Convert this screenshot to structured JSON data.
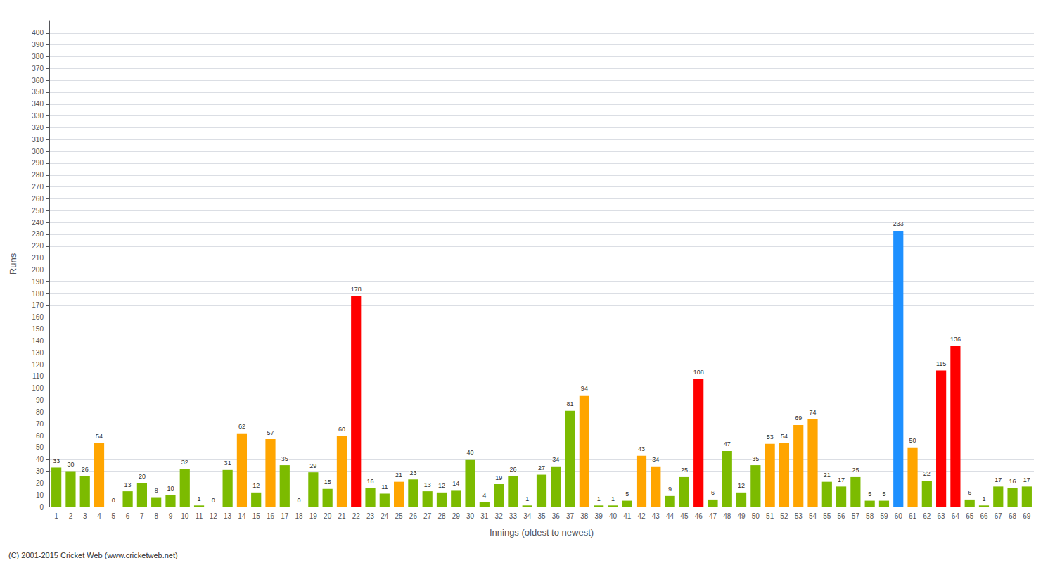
{
  "chart_data": {
    "type": "bar",
    "xlabel": "Innings (oldest to newest)",
    "ylabel": "Runs",
    "categories": [
      1,
      2,
      3,
      4,
      5,
      6,
      7,
      8,
      9,
      10,
      11,
      12,
      13,
      14,
      15,
      16,
      17,
      18,
      19,
      20,
      21,
      22,
      23,
      24,
      25,
      26,
      27,
      28,
      29,
      30,
      31,
      32,
      33,
      34,
      35,
      36,
      37,
      38,
      39,
      40,
      41,
      42,
      43,
      44,
      45,
      46,
      47,
      48,
      49,
      50,
      51,
      52,
      53,
      54,
      55,
      56,
      57,
      58,
      59,
      60,
      61,
      62,
      63,
      64,
      65,
      66,
      67,
      68,
      69
    ],
    "values": [
      33,
      30,
      26,
      54,
      0,
      13,
      20,
      8,
      10,
      32,
      1,
      0,
      31,
      62,
      12,
      57,
      35,
      0,
      29,
      15,
      60,
      178,
      16,
      11,
      21,
      23,
      13,
      12,
      14,
      40,
      4,
      19,
      26,
      1,
      27,
      34,
      81,
      94,
      1,
      1,
      5,
      43,
      34,
      9,
      25,
      108,
      6,
      47,
      12,
      35,
      53,
      54,
      69,
      74,
      21,
      17,
      25,
      5,
      5,
      233,
      50,
      22,
      115,
      136,
      6,
      1,
      17,
      16,
      17
    ],
    "colors": [
      "#7cbb00",
      "#7cbb00",
      "#7cbb00",
      "#ffa500",
      "#7cbb00",
      "#7cbb00",
      "#7cbb00",
      "#7cbb00",
      "#7cbb00",
      "#7cbb00",
      "#7cbb00",
      "#7cbb00",
      "#7cbb00",
      "#ffa500",
      "#7cbb00",
      "#ffa500",
      "#7cbb00",
      "#7cbb00",
      "#7cbb00",
      "#7cbb00",
      "#ffa500",
      "#ff0000",
      "#7cbb00",
      "#7cbb00",
      "#ffa500",
      "#7cbb00",
      "#7cbb00",
      "#7cbb00",
      "#7cbb00",
      "#7cbb00",
      "#7cbb00",
      "#7cbb00",
      "#7cbb00",
      "#7cbb00",
      "#7cbb00",
      "#7cbb00",
      "#7cbb00",
      "#ffa500",
      "#7cbb00",
      "#7cbb00",
      "#7cbb00",
      "#ffa500",
      "#ffa500",
      "#7cbb00",
      "#7cbb00",
      "#ff0000",
      "#7cbb00",
      "#7cbb00",
      "#7cbb00",
      "#7cbb00",
      "#ffa500",
      "#ffa500",
      "#ffa500",
      "#ffa500",
      "#7cbb00",
      "#7cbb00",
      "#7cbb00",
      "#7cbb00",
      "#7cbb00",
      "#1e90ff",
      "#ffa500",
      "#7cbb00",
      "#ff0000",
      "#ff0000",
      "#7cbb00",
      "#7cbb00",
      "#7cbb00",
      "#7cbb00",
      "#7cbb00"
    ],
    "ylim": [
      0,
      410
    ],
    "yticks": [
      0,
      10,
      20,
      30,
      40,
      50,
      60,
      70,
      80,
      90,
      100,
      110,
      120,
      130,
      140,
      150,
      160,
      170,
      180,
      190,
      200,
      210,
      220,
      230,
      240,
      250,
      260,
      270,
      280,
      290,
      300,
      310,
      320,
      330,
      340,
      350,
      360,
      370,
      380,
      390,
      400
    ],
    "grid": true,
    "data_labels": true,
    "annotations": [
      "(C) 2001-2015 Cricket Web (www.cricketweb.net)"
    ]
  }
}
